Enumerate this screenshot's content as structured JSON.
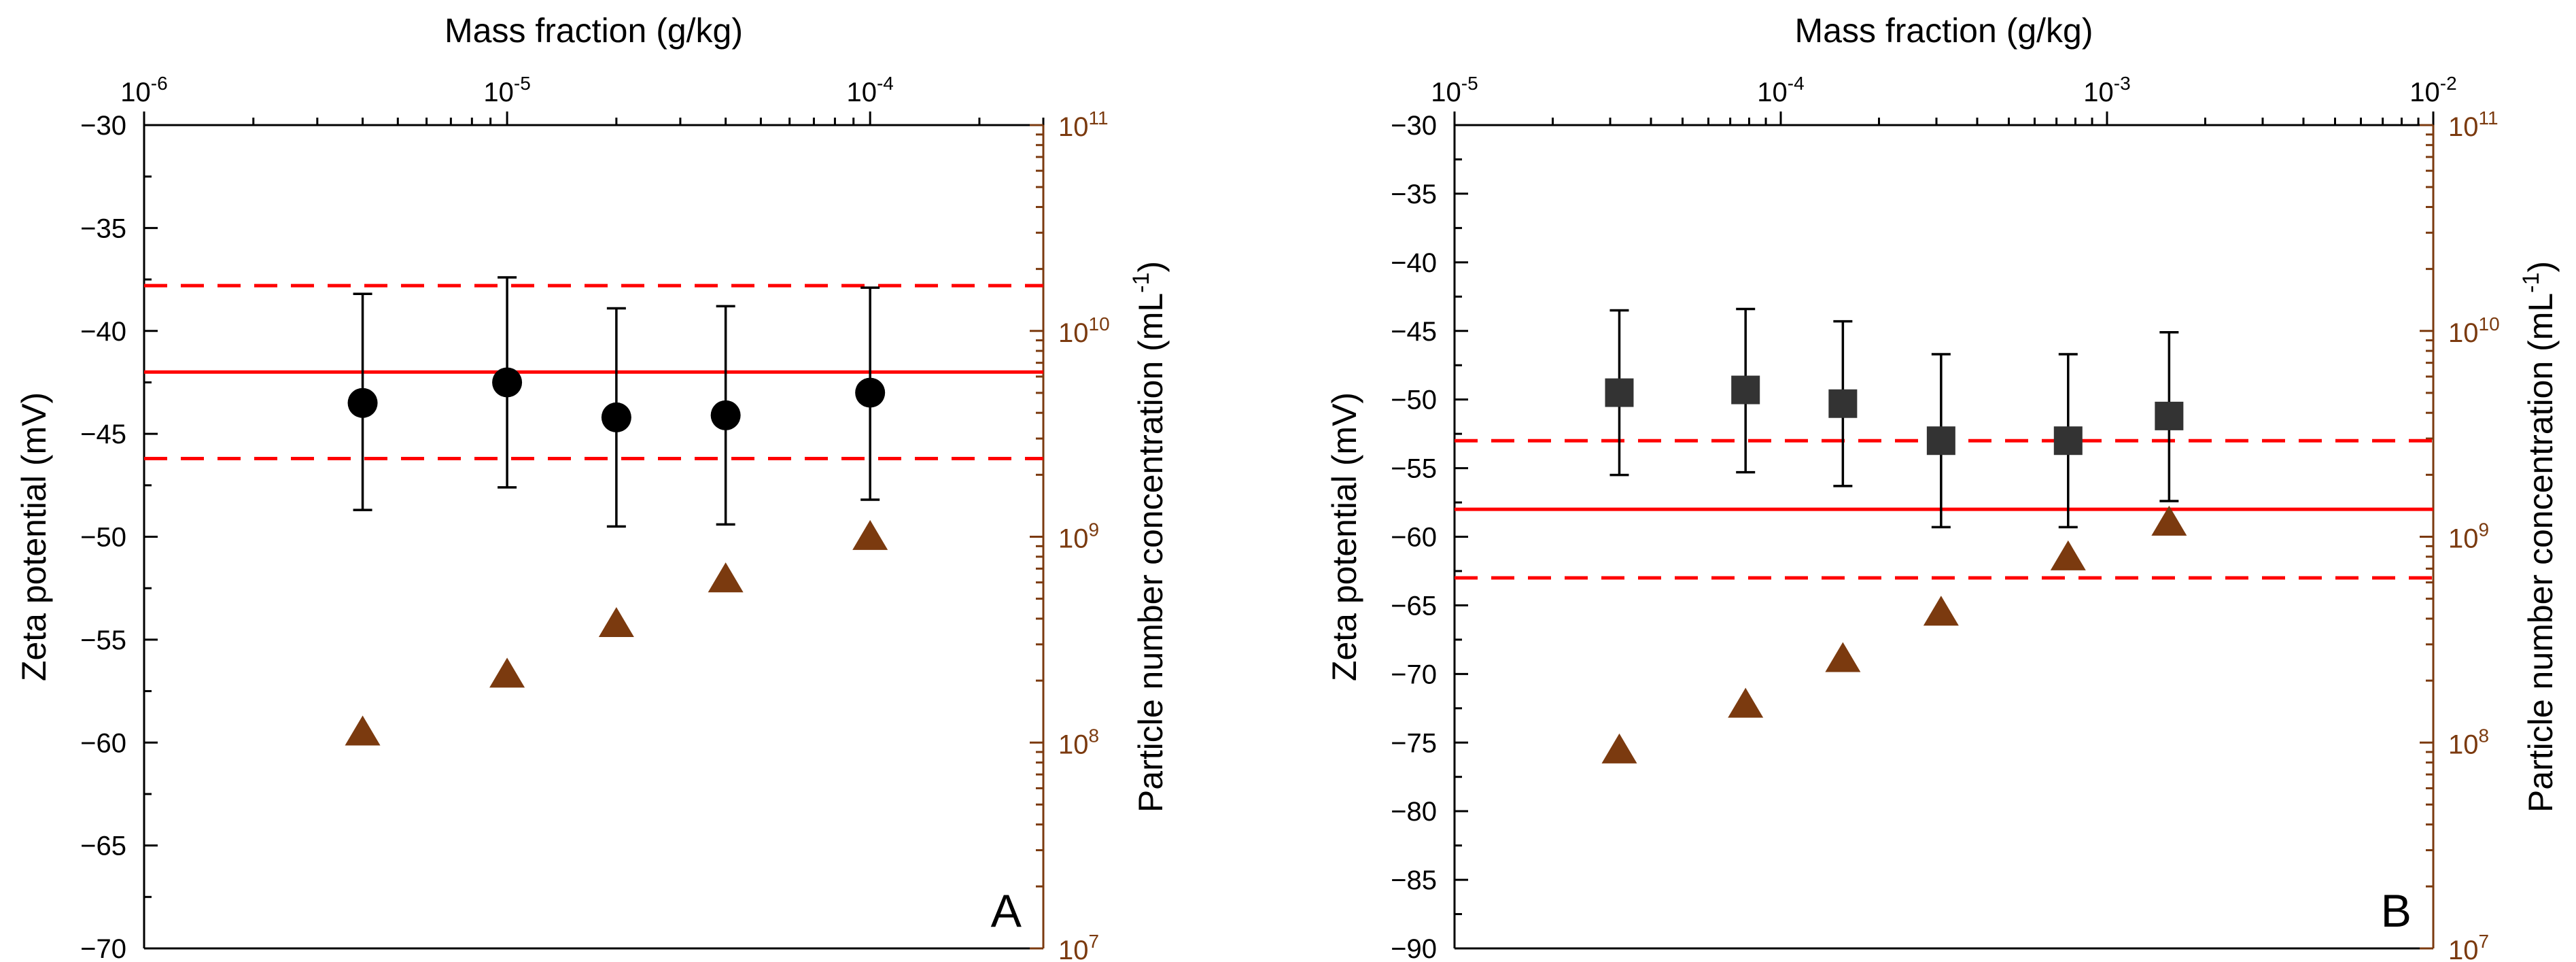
{
  "chart_data": [
    {
      "type": "scatter",
      "panel_label": "A",
      "xlabel": "Mass fraction (g/kg)",
      "x_scale": "log",
      "xlim": [
        1e-06,
        0.0003
      ],
      "x_ticks": [
        {
          "value": 1e-06,
          "base": "10",
          "exp": "-6"
        },
        {
          "value": 1e-05,
          "base": "10",
          "exp": "-5"
        },
        {
          "value": 0.0001,
          "base": "10",
          "exp": "-4"
        }
      ],
      "ylabel": "Zeta potential (mV)",
      "ylim": [
        -70,
        -30
      ],
      "y_ticks": [
        -70,
        -65,
        -60,
        -55,
        -50,
        -45,
        -40,
        -35,
        -30
      ],
      "y2label": "Particle number concentration (mL",
      "y2label_exp": "-1",
      "y2label_end": ")",
      "y2_scale": "log",
      "y2lim": [
        10000000.0,
        100000000000.0
      ],
      "y2_ticks": [
        {
          "value": 10000000.0,
          "base": "10",
          "exp": "7"
        },
        {
          "value": 100000000.0,
          "base": "10",
          "exp": "8"
        },
        {
          "value": 1000000000.0,
          "base": "10",
          "exp": "9"
        },
        {
          "value": 10000000000.0,
          "base": "10",
          "exp": "10"
        },
        {
          "value": 100000000000.0,
          "base": "10",
          "exp": "11"
        }
      ],
      "reference": {
        "mean": -42,
        "lower": -46.2,
        "upper": -37.8
      },
      "series": [
        {
          "name": "Zeta potential",
          "axis": "left",
          "marker": "circle",
          "color": "#000000",
          "points": [
            {
              "x": 4e-06,
              "y": -43.5,
              "err_low": 5.2,
              "err_high": 5.3
            },
            {
              "x": 1e-05,
              "y": -42.5,
              "err_low": 5.1,
              "err_high": 5.1
            },
            {
              "x": 2e-05,
              "y": -44.2,
              "err_low": 5.3,
              "err_high": 5.3
            },
            {
              "x": 4e-05,
              "y": -44.1,
              "err_low": 5.3,
              "err_high": 5.3
            },
            {
              "x": 0.0001,
              "y": -43.0,
              "err_low": 5.2,
              "err_high": 5.1
            }
          ]
        },
        {
          "name": "Particle number concentration",
          "axis": "right",
          "marker": "triangle",
          "color": "#7B3A0F",
          "points": [
            {
              "x": 4e-06,
              "y": 110000000.0
            },
            {
              "x": 1e-05,
              "y": 210000000.0
            },
            {
              "x": 2e-05,
              "y": 370000000.0
            },
            {
              "x": 4e-05,
              "y": 610000000.0
            },
            {
              "x": 0.0001,
              "y": 980000000.0
            }
          ]
        }
      ]
    },
    {
      "type": "scatter",
      "panel_label": "B",
      "xlabel": "Mass fraction (g/kg)",
      "x_scale": "log",
      "xlim": [
        1e-05,
        0.01
      ],
      "x_ticks": [
        {
          "value": 1e-05,
          "base": "10",
          "exp": "-5"
        },
        {
          "value": 0.0001,
          "base": "10",
          "exp": "-4"
        },
        {
          "value": 0.001,
          "base": "10",
          "exp": "-3"
        },
        {
          "value": 0.01,
          "base": "10",
          "exp": "-2"
        }
      ],
      "ylabel": "Zeta potential (mV)",
      "ylim": [
        -90,
        -30
      ],
      "y_ticks": [
        -90,
        -85,
        -80,
        -75,
        -70,
        -65,
        -60,
        -55,
        -50,
        -45,
        -40,
        -35,
        -30
      ],
      "y2label": "Particle number concentration (mL",
      "y2label_exp": "-1",
      "y2label_end": ")",
      "y2_scale": "log",
      "y2lim": [
        10000000.0,
        100000000000.0
      ],
      "y2_ticks": [
        {
          "value": 10000000.0,
          "base": "10",
          "exp": "7"
        },
        {
          "value": 100000000.0,
          "base": "10",
          "exp": "8"
        },
        {
          "value": 1000000000.0,
          "base": "10",
          "exp": "9"
        },
        {
          "value": 10000000000.0,
          "base": "10",
          "exp": "10"
        },
        {
          "value": 100000000000.0,
          "base": "10",
          "exp": "11"
        }
      ],
      "reference": {
        "mean": -58,
        "lower": -63,
        "upper": -53
      },
      "series": [
        {
          "name": "Zeta potential",
          "axis": "left",
          "marker": "square",
          "color": "#333333",
          "points": [
            {
              "x": 3.2e-05,
              "y": -49.5,
              "err_low": 6.0,
              "err_high": 6.0
            },
            {
              "x": 7.8e-05,
              "y": -49.3,
              "err_low": 6.0,
              "err_high": 5.9
            },
            {
              "x": 0.000155,
              "y": -50.3,
              "err_low": 6.0,
              "err_high": 6.0
            },
            {
              "x": 0.00031,
              "y": -53.0,
              "err_low": 6.3,
              "err_high": 6.3
            },
            {
              "x": 0.00076,
              "y": -53.0,
              "err_low": 6.3,
              "err_high": 6.3
            },
            {
              "x": 0.00155,
              "y": -51.2,
              "err_low": 6.2,
              "err_high": 6.1
            }
          ]
        },
        {
          "name": "Particle number concentration",
          "axis": "right",
          "marker": "triangle",
          "color": "#7B3A0F",
          "points": [
            {
              "x": 3.2e-05,
              "y": 90000000.0
            },
            {
              "x": 7.8e-05,
              "y": 150000000.0
            },
            {
              "x": 0.000155,
              "y": 250000000.0
            },
            {
              "x": 0.00031,
              "y": 420000000.0
            },
            {
              "x": 0.00076,
              "y": 780000000.0
            },
            {
              "x": 0.00155,
              "y": 1150000000.0
            }
          ]
        }
      ]
    }
  ],
  "colors": {
    "axis": "#000000",
    "right_axis": "#7B3A0F",
    "reference_line": "#FF0000"
  }
}
